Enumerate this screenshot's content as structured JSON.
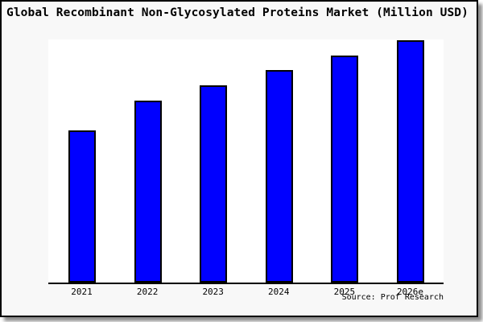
{
  "chart": {
    "source": "Source: Prof Research"
  },
  "chart_data": {
    "type": "bar",
    "title": "Global Recombinant Non-Glycosylated Proteins Market (Million USD)",
    "categories": [
      "2021",
      "2022",
      "2023",
      "2024",
      "2025",
      "2026e"
    ],
    "values": [
      62.8,
      75.1,
      81.4,
      87.7,
      93.7,
      100
    ],
    "values_note": "No y-axis or data labels shown in image; values estimated from bar heights, normalized to 2026e = 100",
    "xlabel": "",
    "ylabel": "",
    "ylim": [
      0,
      100.3
    ],
    "grid": false,
    "legend": null,
    "annotations": [
      "Source: Prof Research"
    ],
    "colors": {
      "bar_fill": "#0000ff",
      "bar_border": "#000000",
      "figure_background": "#f8f8f8",
      "plot_background": "#ffffff",
      "axis": "#000000",
      "text": "#000000"
    }
  }
}
